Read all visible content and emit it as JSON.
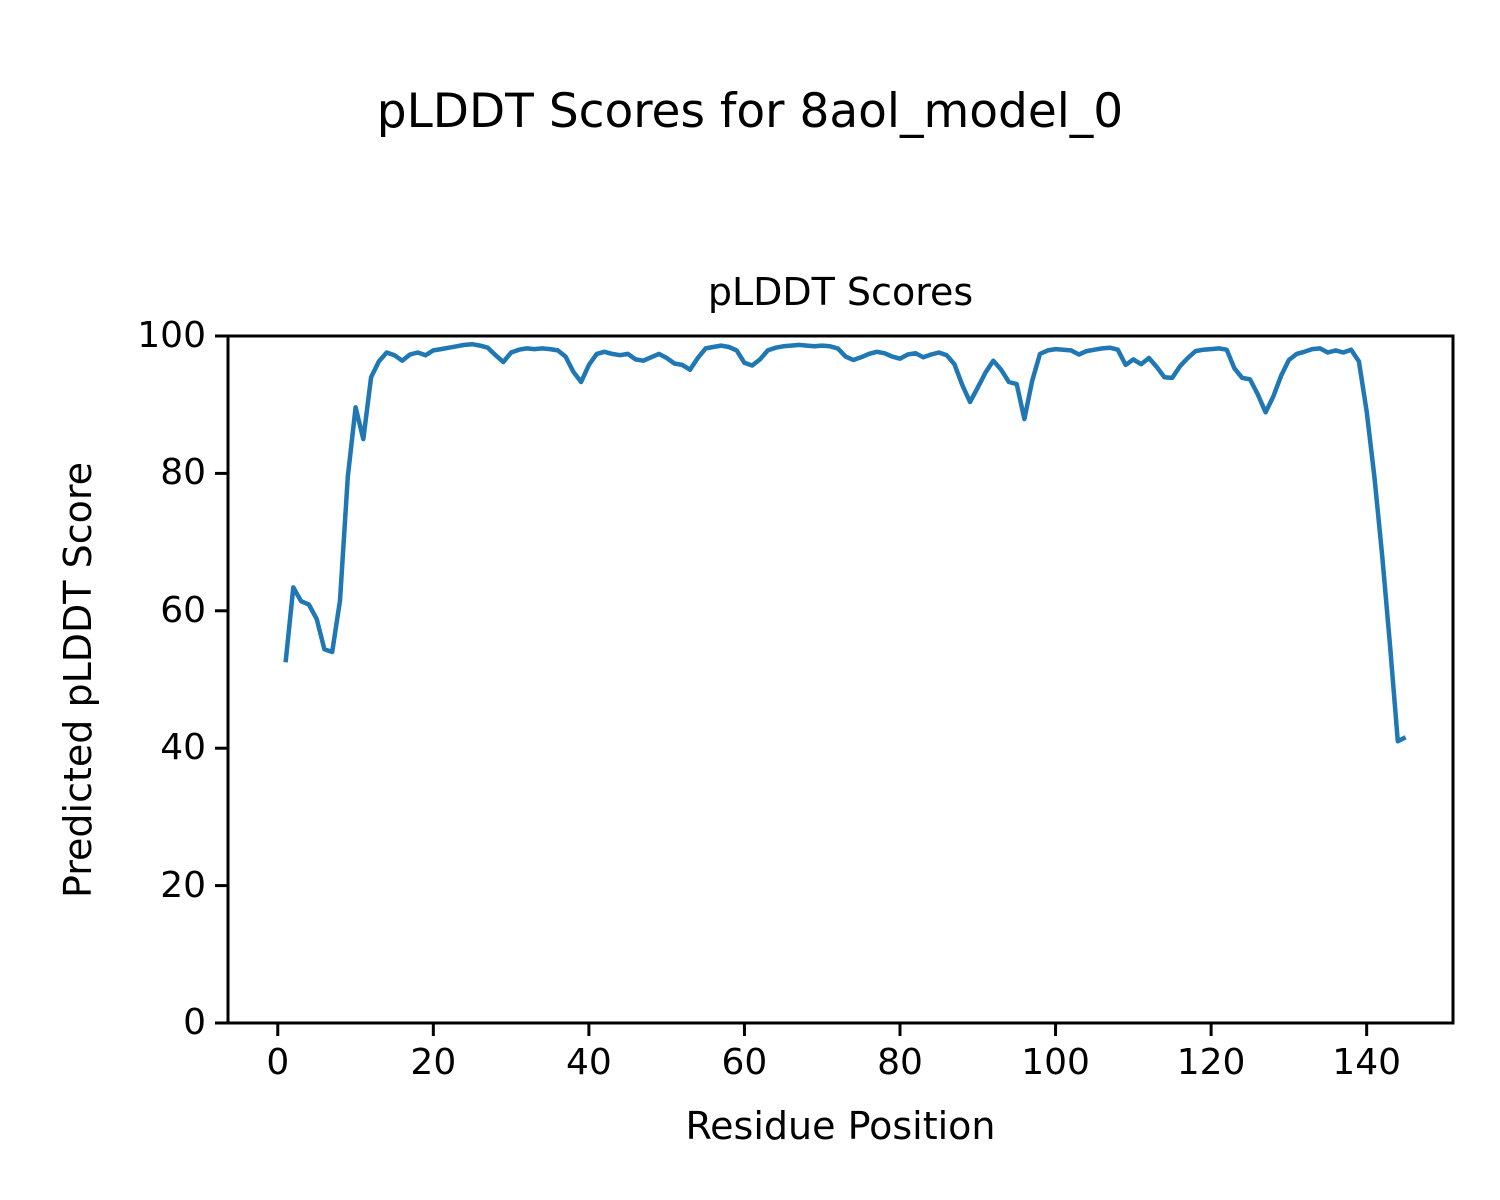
{
  "figure": {
    "suptitle": "pLDDT Scores for 8aol_model_0",
    "background": "#ffffff",
    "axis_color": "#000000"
  },
  "chart_data": {
    "type": "line",
    "title": "pLDDT Scores",
    "xlabel": "Residue Position",
    "ylabel": "Predicted pLDDT Score",
    "legend": "none",
    "grid": false,
    "line_color": "#1f77b4",
    "xlim": [
      -6.4,
      151.1
    ],
    "ylim": [
      0,
      100
    ],
    "xticks": [
      0,
      20,
      40,
      60,
      80,
      100,
      120,
      140
    ],
    "yticks": [
      0,
      20,
      40,
      60,
      80,
      100
    ],
    "x_start": 1,
    "series": [
      {
        "name": "pLDDT",
        "values": [
          52.5,
          63.4,
          61.4,
          60.9,
          58.8,
          54.4,
          54.0,
          61.5,
          79.5,
          89.6,
          85.0,
          94.0,
          96.3,
          97.6,
          97.2,
          96.4,
          97.3,
          97.6,
          97.2,
          97.9,
          98.1,
          98.3,
          98.5,
          98.7,
          98.8,
          98.6,
          98.3,
          97.2,
          96.2,
          97.6,
          98.0,
          98.2,
          98.1,
          98.2,
          98.1,
          97.9,
          97.0,
          94.8,
          93.3,
          95.8,
          97.4,
          97.7,
          97.4,
          97.2,
          97.4,
          96.6,
          96.4,
          96.9,
          97.4,
          96.8,
          96.0,
          95.8,
          95.1,
          96.8,
          98.2,
          98.4,
          98.6,
          98.4,
          97.9,
          96.1,
          95.7,
          96.6,
          97.9,
          98.3,
          98.5,
          98.6,
          98.7,
          98.6,
          98.5,
          98.6,
          98.5,
          98.2,
          97.0,
          96.5,
          96.9,
          97.4,
          97.7,
          97.5,
          97.0,
          96.7,
          97.3,
          97.5,
          96.9,
          97.3,
          97.6,
          97.2,
          95.9,
          92.9,
          90.4,
          92.5,
          94.7,
          96.4,
          95.1,
          93.3,
          93.0,
          87.9,
          93.5,
          97.4,
          97.9,
          98.1,
          98.0,
          97.9,
          97.3,
          97.8,
          98.0,
          98.2,
          98.3,
          98.0,
          95.8,
          96.6,
          95.9,
          96.8,
          95.5,
          94.0,
          93.9,
          95.6,
          96.8,
          97.8,
          98.0,
          98.1,
          98.2,
          98.0,
          95.3,
          93.9,
          93.7,
          91.5,
          88.9,
          91.2,
          94.2,
          96.5,
          97.4,
          97.7,
          98.1,
          98.2,
          97.6,
          97.9,
          97.6,
          98.0,
          96.3,
          89.0,
          79.5,
          68.0,
          55.0,
          41.0,
          41.6
        ]
      }
    ]
  }
}
